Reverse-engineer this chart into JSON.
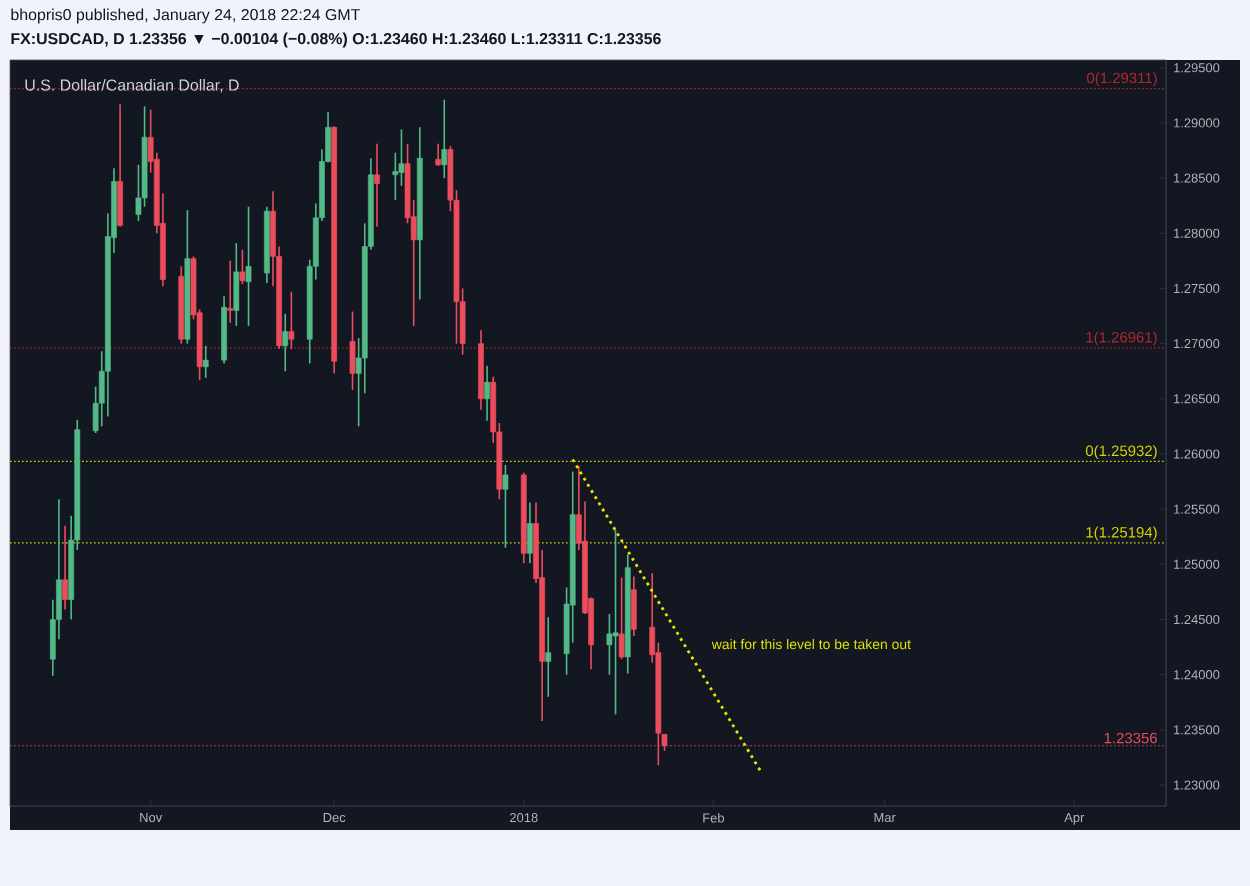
{
  "chart_data": {
    "type": "candlestick",
    "title": "U.S. Dollar/Canadian Dollar, D",
    "subtitle": "FX:USDCAD, D  1.23356 ▼ −0.00104 (−0.08%)  O:1.23460 H:1.23460 L:1.23311 C:1.23356",
    "annotations": [
      "bhopris0 published, January 24, 2018 22:24 GMT",
      "wait for this level to be taken out"
    ],
    "x": [
      "2017-10-16",
      "2017-10-17",
      "2017-10-18",
      "2017-10-19",
      "2017-10-20",
      "2017-10-23",
      "2017-10-24",
      "2017-10-25",
      "2017-10-26",
      "2017-10-27",
      "2017-10-30",
      "2017-10-31",
      "2017-11-01",
      "2017-11-02",
      "2017-11-03",
      "2017-11-06",
      "2017-11-07",
      "2017-11-08",
      "2017-11-09",
      "2017-11-10",
      "2017-11-13",
      "2017-11-14",
      "2017-11-15",
      "2017-11-16",
      "2017-11-17",
      "2017-11-20",
      "2017-11-21",
      "2017-11-22",
      "2017-11-23",
      "2017-11-24",
      "2017-11-27",
      "2017-11-28",
      "2017-11-29",
      "2017-11-30",
      "2017-12-01",
      "2017-12-04",
      "2017-12-05",
      "2017-12-06",
      "2017-12-07",
      "2017-12-08",
      "2017-12-11",
      "2017-12-12",
      "2017-12-13",
      "2017-12-14",
      "2017-12-15",
      "2017-12-18",
      "2017-12-19",
      "2017-12-20",
      "2017-12-21",
      "2017-12-22",
      "2017-12-25",
      "2017-12-26",
      "2017-12-27",
      "2017-12-28",
      "2017-12-29",
      "2018-01-01",
      "2018-01-02",
      "2018-01-03",
      "2018-01-04",
      "2018-01-05",
      "2018-01-08",
      "2018-01-09",
      "2018-01-10",
      "2018-01-11",
      "2018-01-12",
      "2018-01-15",
      "2018-01-16",
      "2018-01-17",
      "2018-01-18",
      "2018-01-19",
      "2018-01-22",
      "2018-01-23",
      "2018-01-24"
    ],
    "ohlc": [
      [
        1.2414,
        1.2468,
        1.2399,
        1.245
      ],
      [
        1.245,
        1.2559,
        1.2432,
        1.2486
      ],
      [
        1.2486,
        1.2535,
        1.2459,
        1.2468
      ],
      [
        1.2468,
        1.2544,
        1.245,
        1.2522
      ],
      [
        1.2522,
        1.2631,
        1.2513,
        1.2622
      ],
      [
        1.2621,
        1.2661,
        1.2619,
        1.2646
      ],
      [
        1.2646,
        1.2693,
        1.2625,
        1.2675
      ],
      [
        1.2675,
        1.2818,
        1.2634,
        1.2797
      ],
      [
        1.2796,
        1.2859,
        1.2782,
        1.2847
      ],
      [
        1.2847,
        1.2917,
        1.2806,
        1.2807
      ],
      [
        1.2817,
        1.2862,
        1.2811,
        1.2832
      ],
      [
        1.2832,
        1.2915,
        1.2824,
        1.2887
      ],
      [
        1.2887,
        1.2912,
        1.2855,
        1.2865
      ],
      [
        1.2867,
        1.2873,
        1.28,
        1.2807
      ],
      [
        1.2809,
        1.2836,
        1.2752,
        1.2758
      ],
      [
        1.2761,
        1.277,
        1.27,
        1.2704
      ],
      [
        1.2704,
        1.2821,
        1.27,
        1.2777
      ],
      [
        1.2777,
        1.2779,
        1.2722,
        1.2726
      ],
      [
        1.2728,
        1.2731,
        1.2667,
        1.2679
      ],
      [
        1.2679,
        1.2698,
        1.2669,
        1.2685
      ],
      [
        1.2685,
        1.2743,
        1.2682,
        1.2733
      ],
      [
        1.2732,
        1.2775,
        1.2719,
        1.273
      ],
      [
        1.273,
        1.2791,
        1.2716,
        1.2765
      ],
      [
        1.2765,
        1.2785,
        1.2754,
        1.2757
      ],
      [
        1.2756,
        1.2824,
        1.2716,
        1.277
      ],
      [
        1.2764,
        1.2824,
        1.2755,
        1.282
      ],
      [
        1.282,
        1.2838,
        1.2752,
        1.2779
      ],
      [
        1.2779,
        1.2788,
        1.2695,
        1.2698
      ],
      [
        1.2698,
        1.2727,
        1.2675,
        1.2711
      ],
      [
        1.2711,
        1.2747,
        1.2695,
        1.2704
      ],
      [
        1.2704,
        1.2776,
        1.2682,
        1.277
      ],
      [
        1.277,
        1.2827,
        1.2758,
        1.2814
      ],
      [
        1.2814,
        1.2876,
        1.2811,
        1.2865
      ],
      [
        1.2865,
        1.291,
        1.2864,
        1.2896
      ],
      [
        1.2896,
        1.2897,
        1.2673,
        1.2684
      ],
      [
        1.2702,
        1.2729,
        1.2658,
        1.2673
      ],
      [
        1.2673,
        1.2705,
        1.2625,
        1.2687
      ],
      [
        1.2687,
        1.2809,
        1.2655,
        1.2788
      ],
      [
        1.2788,
        1.2868,
        1.2785,
        1.2853
      ],
      [
        1.2853,
        1.2881,
        1.2806,
        1.2845
      ],
      [
        1.2853,
        1.2873,
        1.283,
        1.2856
      ],
      [
        1.2855,
        1.2894,
        1.2843,
        1.2863
      ],
      [
        1.2863,
        1.2881,
        1.2809,
        1.2814
      ],
      [
        1.2815,
        1.283,
        1.2716,
        1.2794
      ],
      [
        1.2794,
        1.2896,
        1.274,
        1.2868
      ],
      [
        1.2867,
        1.2881,
        1.2861,
        1.2862
      ],
      [
        1.2862,
        1.2921,
        1.285,
        1.2876
      ],
      [
        1.2876,
        1.2879,
        1.282,
        1.283
      ],
      [
        1.283,
        1.2839,
        1.27,
        1.2738
      ],
      [
        1.2738,
        1.275,
        1.269,
        1.27
      ],
      [
        1.27,
        1.2712,
        1.264,
        1.265
      ],
      [
        1.265,
        1.268,
        1.263,
        1.2665
      ],
      [
        1.2665,
        1.267,
        1.261,
        1.262
      ],
      [
        1.262,
        1.2628,
        1.2559,
        1.2568
      ],
      [
        1.2568,
        1.259,
        1.2515,
        1.2581
      ],
      [
        1.2581,
        1.2583,
        1.2501,
        1.251
      ],
      [
        1.251,
        1.2556,
        1.2501,
        1.2537
      ],
      [
        1.2537,
        1.2556,
        1.2483,
        1.2487
      ],
      [
        1.2488,
        1.2513,
        1.2358,
        1.2412
      ],
      [
        1.2412,
        1.2452,
        1.238,
        1.242
      ],
      [
        1.2419,
        1.2479,
        1.24,
        1.2464
      ],
      [
        1.2463,
        1.2584,
        1.2429,
        1.2545
      ],
      [
        1.2545,
        1.2589,
        1.2513,
        1.2519
      ],
      [
        1.2521,
        1.2557,
        1.2455,
        1.2456
      ],
      [
        1.2469,
        1.247,
        1.2405,
        1.2427
      ],
      [
        1.2427,
        1.2455,
        1.24,
        1.2437
      ],
      [
        1.2435,
        1.2531,
        1.2364,
        1.2438
      ],
      [
        1.2437,
        1.2488,
        1.2414,
        1.2416
      ],
      [
        1.2416,
        1.2509,
        1.2401,
        1.2497
      ],
      [
        1.2477,
        1.2489,
        1.2435,
        1.2441
      ],
      [
        1.2443,
        1.2492,
        1.2411,
        1.2418
      ],
      [
        1.242,
        1.2429,
        1.2318,
        1.2347
      ],
      [
        1.2346,
        1.2346,
        1.23311,
        1.23356
      ]
    ],
    "colors": [
      "#53b987",
      "#53b987",
      "#eb4d5c",
      "#53b987",
      "#53b987",
      "#53b987",
      "#53b987",
      "#53b987",
      "#53b987",
      "#eb4d5c",
      "#53b987",
      "#53b987",
      "#eb4d5c",
      "#eb4d5c",
      "#eb4d5c",
      "#eb4d5c",
      "#53b987",
      "#eb4d5c",
      "#eb4d5c",
      "#53b987",
      "#53b987",
      "#eb4d5c",
      "#53b987",
      "#eb4d5c",
      "#53b987",
      "#53b987",
      "#eb4d5c",
      "#eb4d5c",
      "#53b987",
      "#eb4d5c",
      "#53b987",
      "#53b987",
      "#53b987",
      "#53b987",
      "#eb4d5c",
      "#eb4d5c",
      "#53b987",
      "#53b987",
      "#53b987",
      "#eb4d5c",
      "#53b987",
      "#53b987",
      "#eb4d5c",
      "#eb4d5c",
      "#53b987",
      "#eb4d5c",
      "#53b987",
      "#eb4d5c",
      "#eb4d5c",
      "#eb4d5c",
      "#eb4d5c",
      "#53b987",
      "#eb4d5c",
      "#eb4d5c",
      "#53b987",
      "#eb4d5c",
      "#53b987",
      "#eb4d5c",
      "#eb4d5c",
      "#53b987",
      "#53b987",
      "#53b987",
      "#eb4d5c",
      "#eb4d5c",
      "#eb4d5c",
      "#53b987",
      "#53b987",
      "#eb4d5c",
      "#53b987",
      "#eb4d5c",
      "#eb4d5c",
      "#eb4d5c",
      "#eb4d5c"
    ],
    "series": [
      {
        "type": "line",
        "color": "#e6e600",
        "line_style": "dotted",
        "x": [
          "2018-01-09",
          "2018-02-09"
        ],
        "values": [
          1.2595,
          1.231
        ]
      }
    ],
    "ref_lines": [
      {
        "axis": "y",
        "value": 1.29311,
        "label": "0(1.29311)",
        "color": "#b2282e",
        "line_style": "dotted"
      },
      {
        "axis": "y",
        "value": 1.26961,
        "label": "1(1.26961)",
        "color": "#b2282e",
        "line_style": "dotted"
      },
      {
        "axis": "y",
        "value": 1.25932,
        "label": "0(1.25932)",
        "color": "#d6d600",
        "line_style": "dotted"
      },
      {
        "axis": "y",
        "value": 1.25194,
        "label": "1(1.25194)",
        "color": "#d6d600",
        "line_style": "dotted"
      },
      {
        "axis": "y",
        "value": 1.23356,
        "label": "1.23356",
        "color": "#eb4d5c",
        "line_style": "dotted"
      }
    ],
    "xlim": [
      "2017-10-09",
      "2018-04-16"
    ],
    "ylim": [
      1.2281,
      1.2957
    ],
    "xticks": [
      {
        "value": "2017-11-01",
        "label": "Nov"
      },
      {
        "value": "2017-12-01",
        "label": "Dec"
      },
      {
        "value": "2018-01-01",
        "label": "2018"
      },
      {
        "value": "2018-02-01",
        "label": "Feb"
      },
      {
        "value": "2018-03-01",
        "label": "Mar"
      },
      {
        "value": "2018-04-01",
        "label": "Apr"
      }
    ],
    "yticks": [
      {
        "value": 1.23,
        "label": "1.23000"
      },
      {
        "value": 1.235,
        "label": "1.23500"
      },
      {
        "value": 1.24,
        "label": "1.24000"
      },
      {
        "value": 1.245,
        "label": "1.24500"
      },
      {
        "value": 1.25,
        "label": "1.25000"
      },
      {
        "value": 1.255,
        "label": "1.25500"
      },
      {
        "value": 1.26,
        "label": "1.26000"
      },
      {
        "value": 1.265,
        "label": "1.26500"
      },
      {
        "value": 1.27,
        "label": "1.27000"
      },
      {
        "value": 1.275,
        "label": "1.27500"
      },
      {
        "value": 1.28,
        "label": "1.28000"
      },
      {
        "value": 1.285,
        "label": "1.28500"
      },
      {
        "value": 1.29,
        "label": "1.29000"
      },
      {
        "value": 1.295,
        "label": "1.29500"
      }
    ]
  }
}
